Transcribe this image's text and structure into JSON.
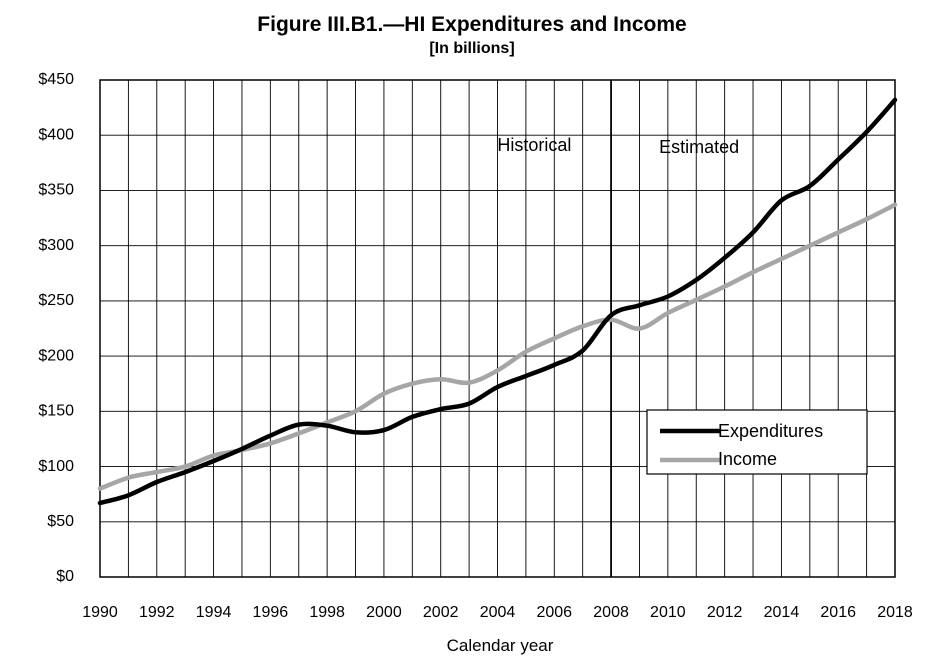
{
  "chart_data": {
    "type": "line",
    "title": "Figure III.B1.—HI Expenditures and Income",
    "subtitle": "[In billions]",
    "xlabel": "Calendar year",
    "ylabel": "",
    "xlim": [
      1990,
      2018
    ],
    "ylim": [
      0,
      450
    ],
    "grid": true,
    "x_ticks": [
      1990,
      1992,
      1994,
      1996,
      1998,
      2000,
      2002,
      2004,
      2006,
      2008,
      2010,
      2012,
      2014,
      2016,
      2018
    ],
    "y_ticks": [
      0,
      50,
      100,
      150,
      200,
      250,
      300,
      350,
      400,
      450
    ],
    "y_tick_labels": [
      "$0",
      "$50",
      "$100",
      "$150",
      "$200",
      "$250",
      "$300",
      "$350",
      "$400",
      "$450"
    ],
    "legend_position": "right",
    "divider": {
      "x": 2008
    },
    "annotations": [
      {
        "text": "Historical",
        "x": 2005.3,
        "y": 390
      },
      {
        "text": "Estimated",
        "x": 2011.1,
        "y": 388
      }
    ],
    "x": [
      1990,
      1991,
      1992,
      1993,
      1994,
      1995,
      1996,
      1997,
      1998,
      1999,
      2000,
      2001,
      2002,
      2003,
      2004,
      2005,
      2006,
      2007,
      2008,
      2009,
      2010,
      2011,
      2012,
      2013,
      2014,
      2015,
      2016,
      2017,
      2018
    ],
    "series": [
      {
        "name": "Expenditures",
        "color": "#000000",
        "values": [
          67,
          74,
          86,
          95,
          105,
          116,
          128,
          138,
          137,
          131,
          133,
          145,
          152,
          157,
          172,
          182,
          192,
          205,
          237,
          246,
          254,
          269,
          289,
          312,
          341,
          354,
          378,
          403,
          432
        ]
      },
      {
        "name": "Income",
        "color": "#a6a6a6",
        "values": [
          80,
          90,
          95,
          100,
          110,
          115,
          121,
          130,
          140,
          150,
          166,
          175,
          179,
          176,
          187,
          204,
          216,
          227,
          233,
          225,
          239,
          251,
          263,
          276,
          288,
          300,
          312,
          324,
          337
        ]
      }
    ]
  }
}
